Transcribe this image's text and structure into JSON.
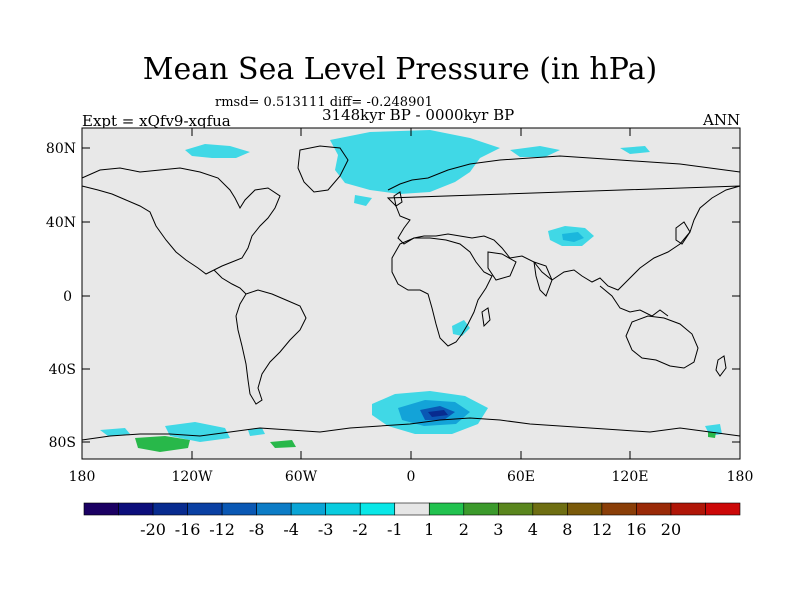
{
  "title": "Mean Sea Level Pressure (in hPa)",
  "stats": "rmsd= 0.513111 diff= -0.248901",
  "period": "3148kyr BP - 0000kyr BP",
  "experiment": "Expt = xQfv9-xqfua",
  "season": "ANN",
  "map": {
    "ocean_color": "#e8e8e8",
    "lat_ticks": [
      "80N",
      "40N",
      "0",
      "40S",
      "80S"
    ],
    "lon_ticks": [
      "180",
      "120W",
      "60W",
      "0",
      "60E",
      "120E",
      "180"
    ]
  },
  "colorbar": {
    "colors": [
      "#1b0063",
      "#0c0e7b",
      "#082b8f",
      "#0a40a3",
      "#0a58b4",
      "#0c7cc6",
      "#0aa5d6",
      "#09ccdf",
      "#09e7e7",
      "#e6e6e6",
      "#22c24f",
      "#3c9a2c",
      "#5a861e",
      "#6e6e12",
      "#7a5a0a",
      "#8a3e08",
      "#9a2a08",
      "#b01608",
      "#cc0808"
    ],
    "labels": [
      "-20",
      "-16",
      "-12",
      "-8",
      "-4",
      "-3",
      "-2",
      "-1",
      "1",
      "2",
      "3",
      "4",
      "8",
      "12",
      "16",
      "20"
    ]
  }
}
